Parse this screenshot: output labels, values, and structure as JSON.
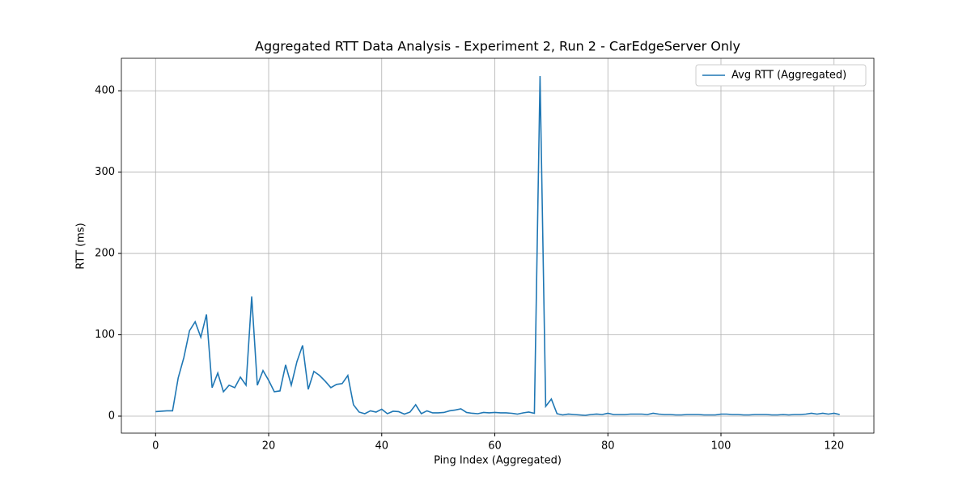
{
  "chart_data": {
    "type": "line",
    "title": "Aggregated RTT Data Analysis - Experiment 2, Run 2 - CarEdgeServer Only",
    "x_label": "Ping Index (Aggregated)",
    "y_label": "RTT (ms)",
    "x": [
      0,
      1,
      2,
      3,
      4,
      5,
      6,
      7,
      8,
      9,
      10,
      11,
      12,
      13,
      14,
      15,
      16,
      17,
      18,
      19,
      20,
      21,
      22,
      23,
      24,
      25,
      26,
      27,
      28,
      29,
      30,
      31,
      32,
      33,
      34,
      35,
      36,
      37,
      38,
      39,
      40,
      41,
      42,
      43,
      44,
      45,
      46,
      47,
      48,
      49,
      50,
      51,
      52,
      53,
      54,
      55,
      56,
      57,
      58,
      59,
      60,
      61,
      62,
      63,
      64,
      65,
      66,
      67,
      68,
      69,
      70,
      71,
      72,
      73,
      74,
      75,
      76,
      77,
      78,
      79,
      80,
      81,
      82,
      83,
      84,
      85,
      86,
      87,
      88,
      89,
      90,
      91,
      92,
      93,
      94,
      95,
      96,
      97,
      98,
      99,
      100,
      101,
      102,
      103,
      104,
      105,
      106,
      107,
      108,
      109,
      110,
      111,
      112,
      113,
      114,
      115,
      116,
      117,
      118,
      119,
      120,
      121
    ],
    "series": [
      {
        "name": "Avg RTT (Aggregated)",
        "color": "#1f77b4",
        "values": [
          5.5,
          6,
          6.5,
          6.5,
          47,
          72,
          105,
          116,
          97,
          125,
          35,
          53,
          30,
          38,
          35,
          48,
          38,
          147,
          38,
          56,
          44,
          30,
          31,
          63,
          38,
          67,
          87,
          33,
          55,
          50,
          43,
          35,
          39,
          40,
          50,
          14,
          5,
          3,
          6.5,
          5,
          8.5,
          3,
          6,
          5.5,
          2.5,
          5,
          14,
          3,
          6.5,
          4,
          4,
          4.5,
          6.5,
          7.5,
          9,
          4.5,
          3.5,
          3,
          4.5,
          4,
          4.5,
          4,
          4,
          3.5,
          2.5,
          4,
          5,
          3.5,
          418,
          12,
          21,
          3,
          1.5,
          2.5,
          2,
          1.5,
          1,
          2,
          2.5,
          2,
          3.5,
          2,
          2,
          2,
          2.5,
          2.5,
          2.5,
          2,
          3.5,
          2.5,
          2,
          2,
          1.5,
          1.5,
          2,
          2,
          2,
          1.5,
          1.5,
          1.5,
          2.5,
          2.5,
          2,
          2,
          1.5,
          1.5,
          2,
          2,
          2,
          1.5,
          1.5,
          2,
          1.5,
          2,
          2,
          2.5,
          3.5,
          2.5,
          3.5,
          2.5,
          3.5,
          2
        ]
      }
    ],
    "xlim": [
      -6.05,
      127.05
    ],
    "ylim": [
      -20.9,
      439.9
    ],
    "xticks": [
      0,
      20,
      40,
      60,
      80,
      100,
      120
    ],
    "yticks": [
      0,
      100,
      200,
      300,
      400
    ],
    "grid": true,
    "legend": "upper right"
  }
}
